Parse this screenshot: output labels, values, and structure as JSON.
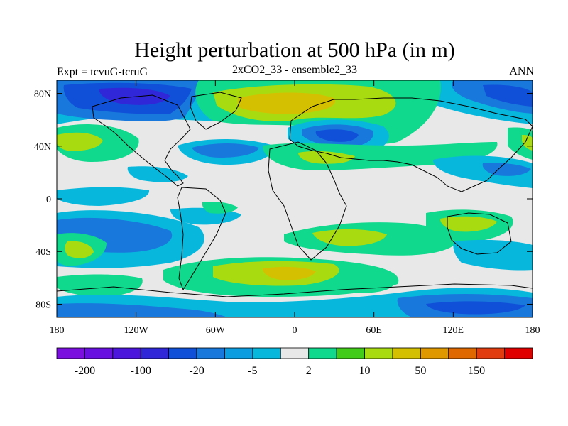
{
  "title": "Height perturbation at 500 hPa (in m)",
  "subtitle_left": "Expt = tcvuG-tcruG",
  "subtitle_center": "2xCO2_33 - ensemble2_33",
  "subtitle_right": "ANN",
  "y_ticks": [
    {
      "lat": 80,
      "label": "80N"
    },
    {
      "lat": 40,
      "label": "40N"
    },
    {
      "lat": 0,
      "label": "0"
    },
    {
      "lat": -40,
      "label": "40S"
    },
    {
      "lat": -80,
      "label": "80S"
    }
  ],
  "x_ticks": [
    {
      "lon": -180,
      "label": "180"
    },
    {
      "lon": -120,
      "label": "120W"
    },
    {
      "lon": -60,
      "label": "60W"
    },
    {
      "lon": 0,
      "label": "0"
    },
    {
      "lon": 60,
      "label": "60E"
    },
    {
      "lon": 120,
      "label": "120E"
    },
    {
      "lon": 180,
      "label": "180"
    }
  ],
  "colorbar": {
    "colors": [
      "#7b0fe0",
      "#6810e0",
      "#4c16dc",
      "#3028d8",
      "#1050d8",
      "#1878dc",
      "#0c9ce0",
      "#08b8dc",
      "#e8e8e8",
      "#10d88c",
      "#40cc18",
      "#a8dc10",
      "#d4c000",
      "#e09800",
      "#e06800",
      "#e03c10",
      "#e00000"
    ],
    "labels": [
      {
        "boundary": 1,
        "text": "-200"
      },
      {
        "boundary": 3,
        "text": "-100"
      },
      {
        "boundary": 5,
        "text": "-20"
      },
      {
        "boundary": 7,
        "text": "-5"
      },
      {
        "boundary": 9,
        "text": "2"
      },
      {
        "boundary": 11,
        "text": "10"
      },
      {
        "boundary": 13,
        "text": "50"
      },
      {
        "boundary": 15,
        "text": "150"
      }
    ]
  }
}
